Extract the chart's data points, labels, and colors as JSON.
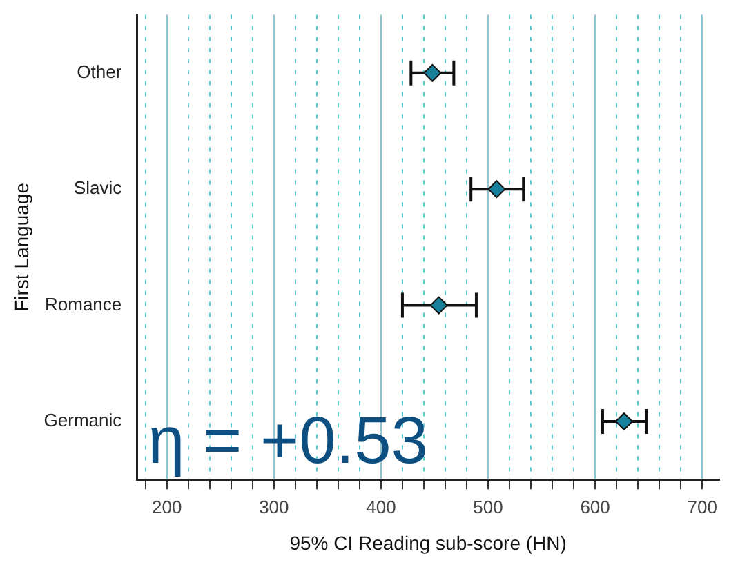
{
  "chart_data": {
    "type": "scatter",
    "orientation": "horizontal",
    "xlabel": "95% CI Reading sub-score (HN)",
    "ylabel": "First Language",
    "categories": [
      "Other",
      "Slavic",
      "Romance",
      "Germanic"
    ],
    "values": [
      448,
      508,
      454,
      627
    ],
    "errors": [
      [
        428,
        468
      ],
      [
        484,
        533
      ],
      [
        420,
        489
      ],
      [
        607,
        648
      ]
    ],
    "color": "#17819c",
    "marker": "diamond",
    "grid": "x",
    "legend": false,
    "xlim": [
      172,
      716
    ],
    "xticks": [
      {
        "value": 180,
        "label": null
      },
      200,
      {
        "value": 220,
        "label": null
      },
      {
        "value": 240,
        "label": null
      },
      {
        "value": 260,
        "label": null
      },
      {
        "value": 280,
        "label": null
      },
      300,
      {
        "value": 320,
        "label": null
      },
      {
        "value": 340,
        "label": null
      },
      {
        "value": 360,
        "label": null
      },
      {
        "value": 380,
        "label": null
      },
      400,
      {
        "value": 420,
        "label": null
      },
      {
        "value": 440,
        "label": null
      },
      {
        "value": 460,
        "label": null
      },
      {
        "value": 480,
        "label": null
      },
      500,
      {
        "value": 520,
        "label": null
      },
      {
        "value": 540,
        "label": null
      },
      {
        "value": 560,
        "label": null
      },
      {
        "value": 580,
        "label": null
      },
      600,
      {
        "value": 620,
        "label": null
      },
      {
        "value": 640,
        "label": null
      },
      {
        "value": 660,
        "label": null
      },
      {
        "value": 680,
        "label": null
      },
      700
    ],
    "annotations": [
      "η = +0.53"
    ]
  }
}
